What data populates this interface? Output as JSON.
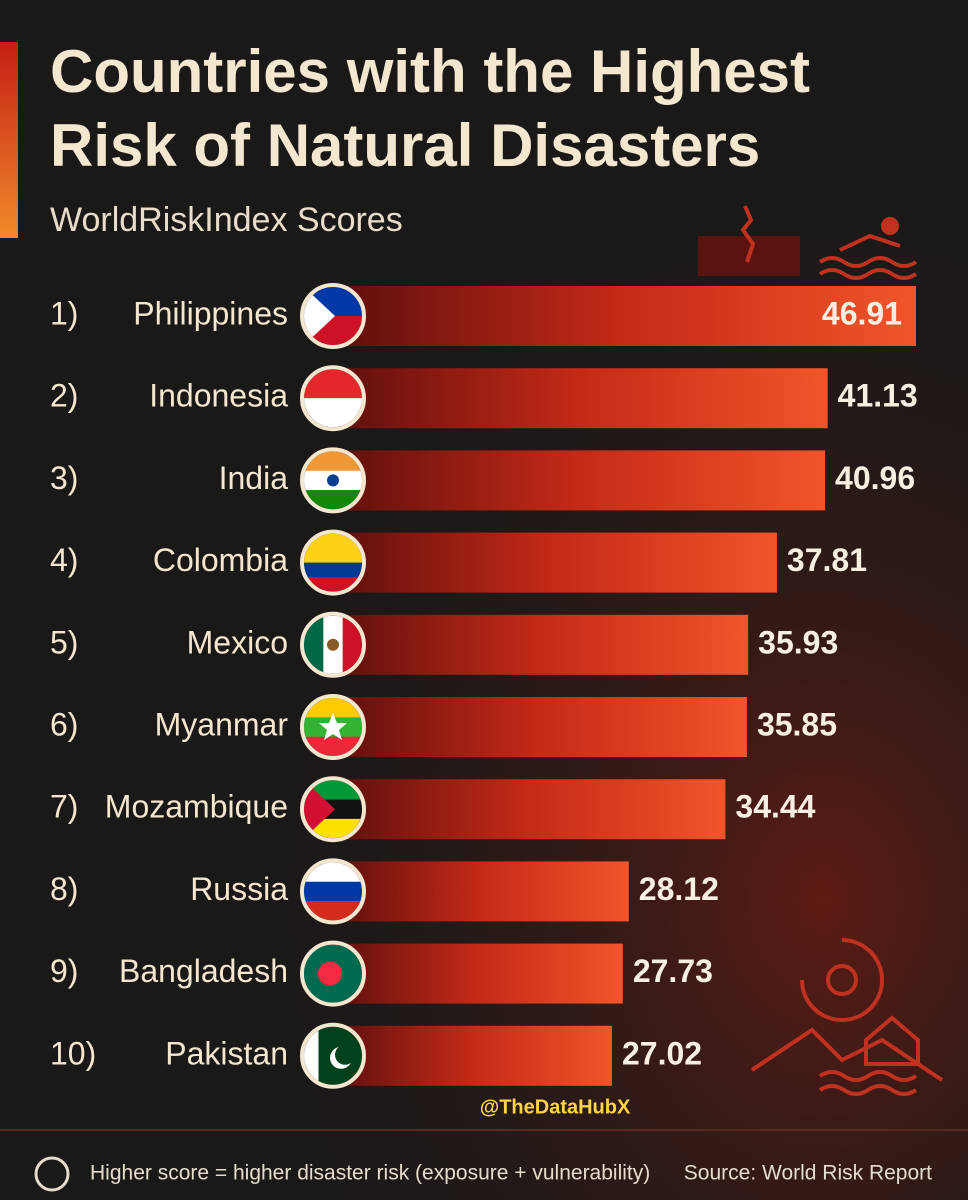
{
  "chart_data": {
    "type": "bar",
    "title_lines": [
      "Countries with the Highest",
      "Risk of Natural Disasters"
    ],
    "subtitle": "WorldRiskIndex Scores",
    "ranks": [
      "1)",
      "2)",
      "3)",
      "4)",
      "5)",
      "6)",
      "7)",
      "8)",
      "9)",
      "10)"
    ],
    "categories": [
      "Philippines",
      "Indonesia",
      "India",
      "Colombia",
      "Mexico",
      "Myanmar",
      "Mozambique",
      "Russia",
      "Bangladesh",
      "Pakistan"
    ],
    "values": [
      46.91,
      41.13,
      40.96,
      37.81,
      35.93,
      35.85,
      34.44,
      28.12,
      27.73,
      27.02
    ],
    "watermark": "@TheDataHubX",
    "note": "Higher score = higher disaster risk (exposure + vulnerability)",
    "source": "Source: World Risk Report"
  }
}
